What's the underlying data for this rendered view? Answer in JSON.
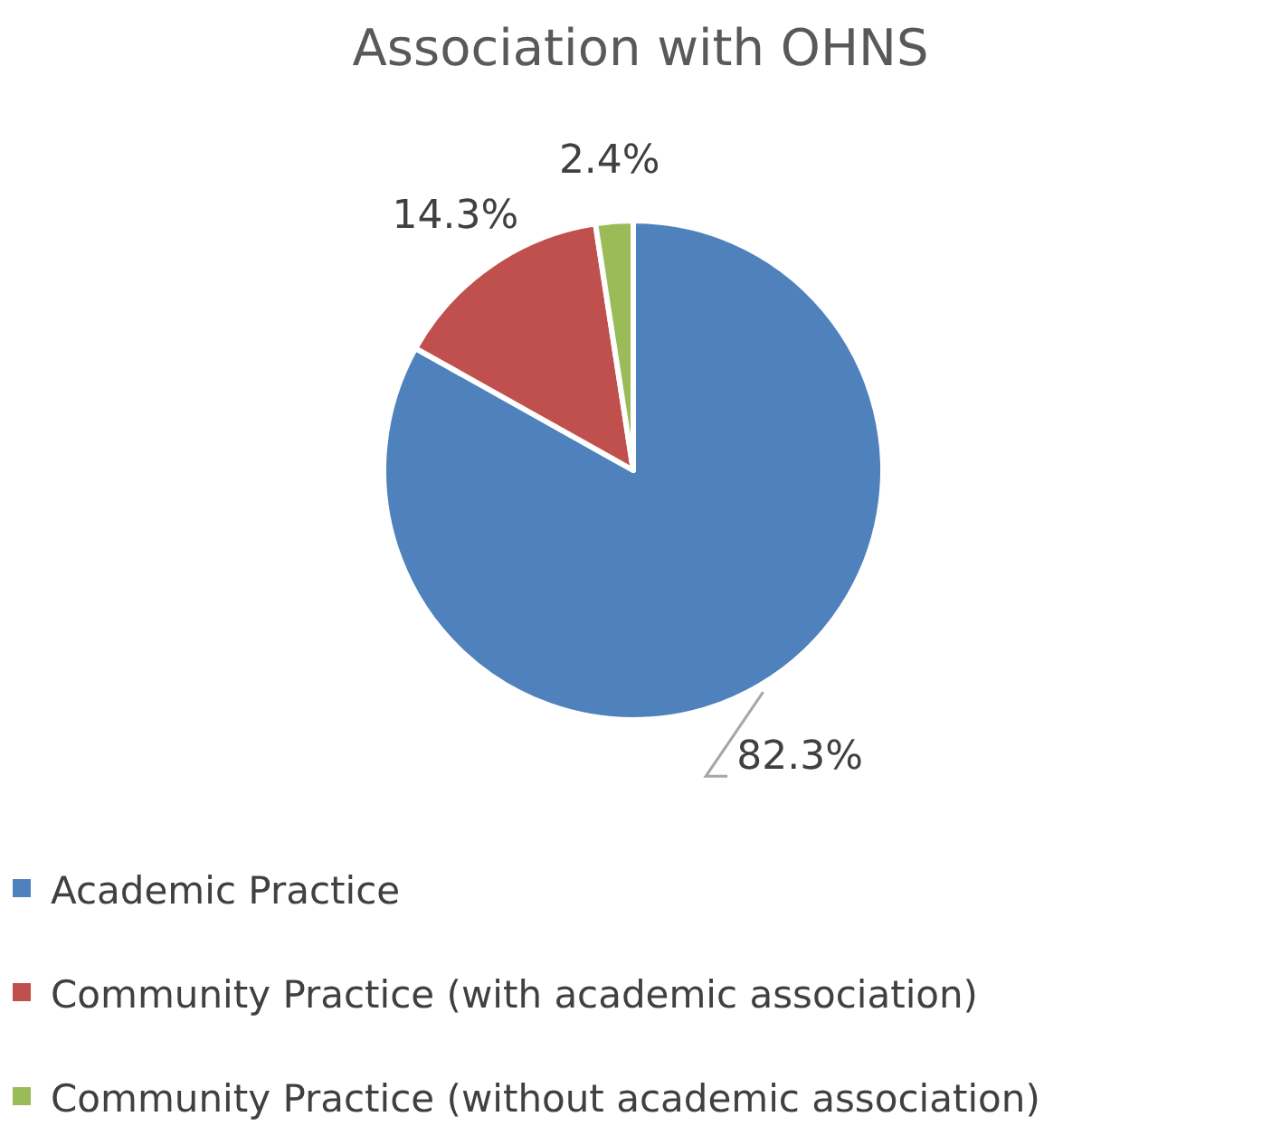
{
  "chart_data": {
    "type": "pie",
    "title": "Association with OHNS",
    "categories": [
      "Academic Practice",
      "Community Practice (with academic association)",
      "Community Practice (without academic association)"
    ],
    "values": [
      82.3,
      14.3,
      2.4
    ],
    "colors": [
      "#4f81bd",
      "#c0504d",
      "#9bbb59"
    ],
    "value_labels": [
      "82.3%",
      "14.3%",
      "2.4%"
    ],
    "legend": "bottom"
  }
}
